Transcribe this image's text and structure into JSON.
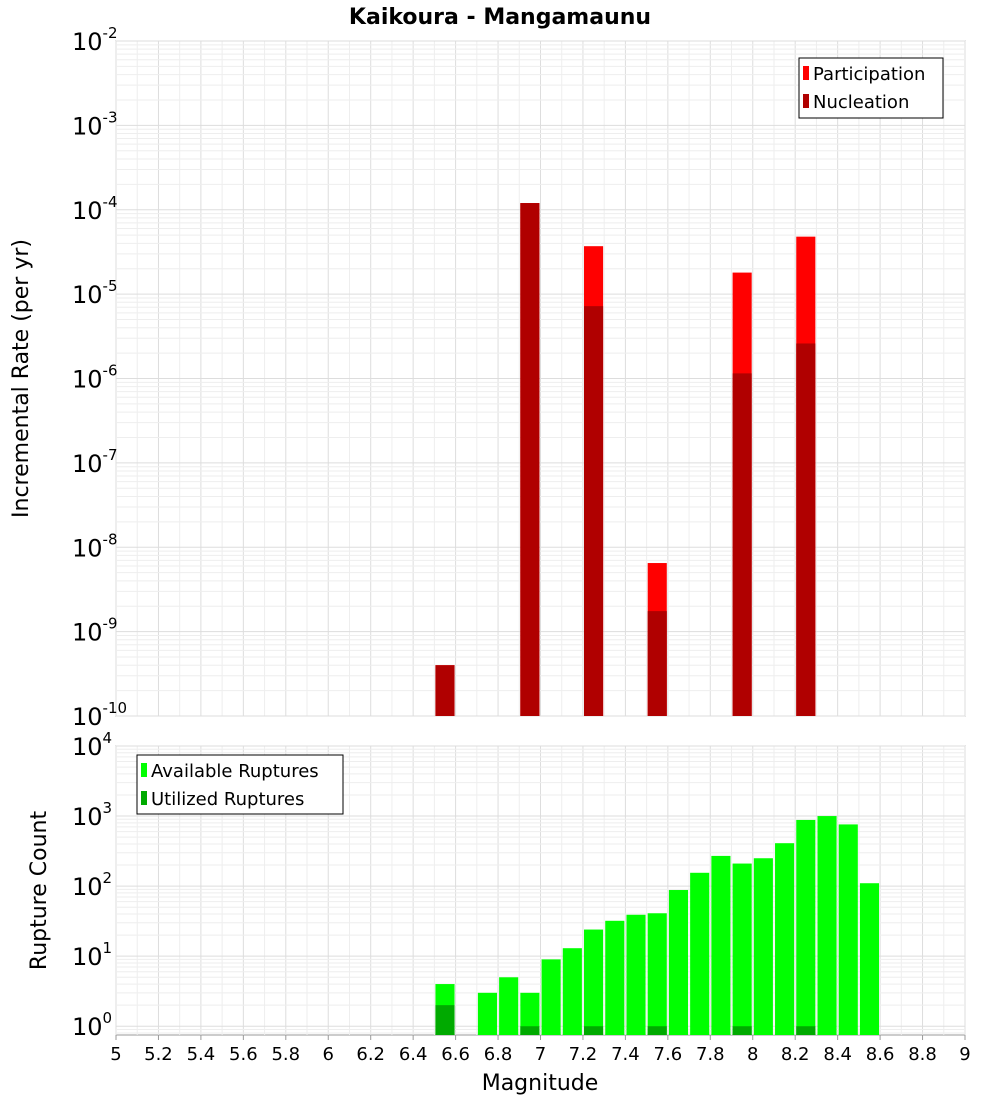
{
  "chart_data": [
    {
      "type": "bar",
      "title": "Kaikoura - Mangamaunu",
      "xlabel": "Magnitude",
      "ylabel": "Incremental Rate (per yr)",
      "yscale": "log",
      "xlim": [
        5,
        9
      ],
      "ylim": [
        1e-10,
        0.01
      ],
      "ytick_bases": [
        "10",
        "10",
        "10",
        "10",
        "10",
        "10",
        "10",
        "10",
        "10"
      ],
      "ytick_exponents": [
        "-10",
        "-9",
        "-8",
        "-7",
        "-6",
        "-5",
        "-4",
        "-3",
        "-2"
      ],
      "legend_position": "top-right",
      "grid": true,
      "series": [
        {
          "name": "Participation",
          "color": "#ff0000",
          "x": [
            6.55,
            6.95,
            7.25,
            7.55,
            7.95,
            8.25
          ],
          "values": [
            4e-10,
            0.00012,
            3.7e-05,
            6.5e-09,
            1.8e-05,
            4.8e-05
          ]
        },
        {
          "name": "Nucleation",
          "color": "#b00000",
          "x": [
            6.55,
            6.95,
            7.25,
            7.55,
            7.95,
            8.25
          ],
          "values": [
            4e-10,
            0.00012,
            7.2e-06,
            1.75e-09,
            1.15e-06,
            2.6e-06
          ]
        }
      ]
    },
    {
      "type": "bar",
      "xlabel": "Magnitude",
      "ylabel": "Rupture Count",
      "yscale": "log",
      "xlim": [
        5,
        9
      ],
      "ylim": [
        0.75,
        10000
      ],
      "xticks": [
        "5",
        "5.2",
        "5.4",
        "5.6",
        "5.8",
        "6",
        "6.2",
        "6.4",
        "6.6",
        "6.8",
        "7",
        "7.2",
        "7.4",
        "7.6",
        "7.8",
        "8",
        "8.2",
        "8.4",
        "8.6",
        "8.8",
        "9"
      ],
      "ytick_bases": [
        "10",
        "10",
        "10",
        "10",
        "10"
      ],
      "ytick_exponents": [
        "0",
        "1",
        "2",
        "3",
        "4"
      ],
      "legend_position": "top-left",
      "grid": true,
      "series": [
        {
          "name": "Available Ruptures",
          "color": "#00ff00",
          "x": [
            6.55,
            6.75,
            6.85,
            6.95,
            7.05,
            7.15,
            7.25,
            7.35,
            7.45,
            7.55,
            7.65,
            7.75,
            7.85,
            7.95,
            8.05,
            8.15,
            8.25,
            8.35,
            8.45,
            8.55
          ],
          "values": [
            4,
            3,
            5,
            3,
            9,
            13,
            24,
            32,
            39,
            41,
            88,
            155,
            270,
            210,
            250,
            410,
            880,
            1000,
            760,
            110
          ]
        },
        {
          "name": "Utilized Ruptures",
          "color": "#00aa00",
          "x": [
            6.55,
            6.95,
            7.25,
            7.55,
            7.95,
            8.25
          ],
          "values": [
            2,
            1,
            1,
            1,
            1,
            1
          ]
        }
      ]
    }
  ]
}
